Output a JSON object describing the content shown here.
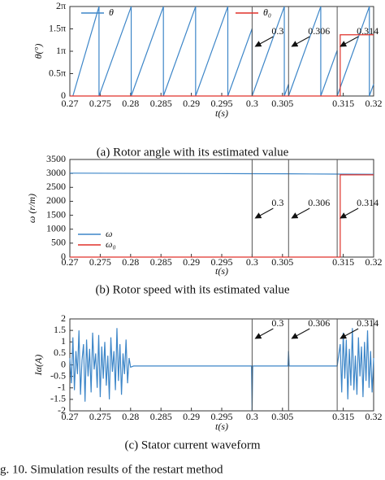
{
  "chart_data": [
    {
      "type": "line",
      "caption": "(a) Rotor angle with its estimated value",
      "x_label": "t(s)",
      "y_label": "θ(°)",
      "xlim": [
        0.27,
        0.32
      ],
      "xticks": [
        0.27,
        0.275,
        0.28,
        0.285,
        0.29,
        0.295,
        0.3,
        0.305,
        0.315,
        0.32
      ],
      "ylim": [
        0,
        6.2832
      ],
      "yticks": [
        0,
        {
          "value": 1.5708,
          "label": "0.5π"
        },
        {
          "value": 3.1416,
          "label": "1π"
        },
        {
          "value": 4.7124,
          "label": "1.5π"
        },
        {
          "value": 6.2832,
          "label": "2π"
        }
      ],
      "legend": "upper center",
      "markers": [
        0.3,
        0.306,
        0.314
      ],
      "series": [
        {
          "name": "θ",
          "color": "#3d86c8",
          "x": [
            0.2705,
            0.2748,
            0.2748,
            0.2801,
            0.2801,
            0.2854,
            0.2854,
            0.2907,
            0.2907,
            0.296,
            0.296,
            0.3,
            0.3,
            0.3053,
            0.3053,
            0.306,
            0.306,
            0.3113,
            0.3113,
            0.314,
            0.314,
            0.3193,
            0.3193,
            0.32
          ],
          "values": [
            0,
            6.28,
            0,
            6.28,
            0,
            6.28,
            0,
            6.28,
            0,
            6.28,
            0,
            4.74,
            0,
            6.28,
            0,
            0.83,
            0,
            6.28,
            0,
            3.2,
            0,
            6.28,
            0,
            0.83
          ]
        },
        {
          "name": "θ₀",
          "color": "#e0302a",
          "x": [
            0.27,
            0.3145,
            0.3145,
            0.32
          ],
          "values": [
            0,
            0,
            4.3,
            4.3
          ]
        }
      ]
    },
    {
      "type": "line",
      "caption": "(b) Rotor speed with its estimated value",
      "x_label": "t(s)",
      "y_label": "ω (r/m)",
      "xlim": [
        0.27,
        0.32
      ],
      "xticks": [
        0.27,
        0.275,
        0.28,
        0.285,
        0.29,
        0.295,
        0.3,
        0.305,
        0.315,
        0.32
      ],
      "ylim": [
        0,
        3500
      ],
      "yticks": [
        0,
        500,
        1000,
        1500,
        2000,
        2500,
        3000,
        3500
      ],
      "legend": "lower left",
      "markers": [
        0.3,
        0.306,
        0.314
      ],
      "series": [
        {
          "name": "ω",
          "color": "#3d86c8",
          "x": [
            0.27,
            0.3,
            0.306,
            0.314,
            0.32
          ],
          "values": [
            3010,
            2990,
            2985,
            2975,
            2970
          ]
        },
        {
          "name": "ω₀",
          "color": "#e0302a",
          "x": [
            0.27,
            0.3145,
            0.3145,
            0.32
          ],
          "values": [
            0,
            0,
            2950,
            2950
          ]
        }
      ]
    },
    {
      "type": "line",
      "caption": "(c) Stator current waveform",
      "x_label": "t(s)",
      "y_label": "Iα(A)",
      "xlim": [
        0.27,
        0.32
      ],
      "xticks": [
        0.27,
        0.275,
        0.28,
        0.285,
        0.29,
        0.295,
        0.3,
        0.305,
        0.315,
        0.32
      ],
      "ylim": [
        -2,
        2
      ],
      "yticks": [
        -2,
        -1.5,
        -1,
        -0.5,
        0,
        0.5,
        1,
        1.5,
        2
      ],
      "markers": [
        0.3,
        0.306,
        0.314
      ],
      "series": [
        {
          "color": "#3d86c8",
          "x": [
            0.27,
            0.27025,
            0.2705,
            0.27075,
            0.271,
            0.27125,
            0.2715,
            0.27175,
            0.272,
            0.27225,
            0.2725,
            0.27275,
            0.273,
            0.27325,
            0.2735,
            0.27375,
            0.274,
            0.27425,
            0.2745,
            0.27475,
            0.275,
            0.27525,
            0.2755,
            0.27575,
            0.276,
            0.27625,
            0.2765,
            0.27675,
            0.277,
            0.27725,
            0.2775,
            0.27775,
            0.278,
            0.27825,
            0.2785,
            0.27875,
            0.279,
            0.27925,
            0.2795,
            0.27975,
            0.28,
            0.2805,
            0.2999,
            0.3,
            0.3001,
            0.3059,
            0.306,
            0.3061,
            0.314,
            0.3145,
            0.31475,
            0.315,
            0.31525,
            0.3155,
            0.31575,
            0.316,
            0.31625,
            0.3165,
            0.31675,
            0.317,
            0.31725,
            0.3175,
            0.31775,
            0.318,
            0.31825,
            0.3185,
            0.31875,
            0.319,
            0.31925,
            0.3195,
            0.31975,
            0.32
          ],
          "values": [
            0.3,
            -0.8,
            1.2,
            -1.1,
            0.6,
            -0.4,
            1.5,
            -1.3,
            0.2,
            0.9,
            -1.6,
            1.1,
            -0.5,
            0.7,
            -1.2,
            1.4,
            -0.2,
            0.5,
            -1.0,
            1.3,
            -1.4,
            0.8,
            -0.6,
            1.0,
            -0.9,
            0.4,
            -1.5,
            1.2,
            -0.3,
            0.6,
            -1.1,
            1.6,
            -0.7,
            0.9,
            -1.3,
            0.5,
            -0.4,
            1.1,
            -0.8,
            0.3,
            -0.1,
            -0.05,
            -0.05,
            -2,
            -0.05,
            -0.05,
            0.6,
            -0.05,
            -0.05,
            0.9,
            -1.2,
            1.4,
            -0.6,
            1.1,
            -1.5,
            0.7,
            -0.9,
            1.6,
            -1.1,
            0.4,
            -1.3,
            1.2,
            -0.5,
            0.8,
            -1.4,
            1.0,
            -0.7,
            1.5,
            -1.0,
            0.6,
            -1.2,
            0.3
          ]
        }
      ]
    }
  ],
  "figure_caption": "g. 10. Simulation results of the restart method"
}
